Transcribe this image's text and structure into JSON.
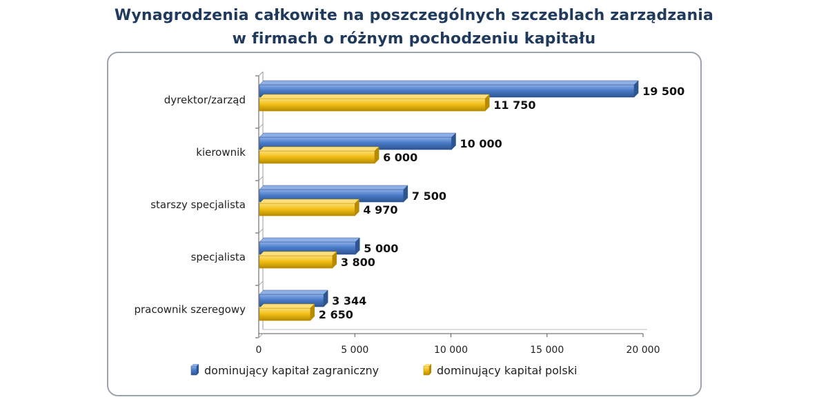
{
  "colors": {
    "series_1": "#4a7bc9",
    "series_1_light": "#8fb0e6",
    "series_1_dark": "#2d558f",
    "series_2": "#f2c018",
    "series_2_light": "#ffe07a",
    "series_2_dark": "#b88a00",
    "axis": "#555555",
    "title": "#1f3a5c"
  },
  "chart_data": {
    "type": "bar",
    "orientation": "horizontal",
    "title_lines": [
      "Wynagrodzenia całkowite na poszczególnych szczeblach zarządzania",
      "w firmach o różnym pochodzeniu kapitału"
    ],
    "categories": [
      "dyrektor/zarząd",
      "kierownik",
      "starszy specjalista",
      "specjalista",
      "pracownik szeregowy"
    ],
    "series": [
      {
        "name": "dominujący kapitał zagraniczny",
        "values": [
          19500,
          10000,
          7500,
          5000,
          3344
        ],
        "labels": [
          "19 500",
          "10 000",
          "7 500",
          "5 000",
          "3 344"
        ]
      },
      {
        "name": "dominujący kapitał polski",
        "values": [
          11750,
          6000,
          4970,
          3800,
          2650
        ],
        "labels": [
          "11 750",
          "6 000",
          "4 970",
          "3 800",
          "2 650"
        ]
      }
    ],
    "xlim": [
      0,
      20000
    ],
    "xticks": [
      0,
      5000,
      10000,
      15000,
      20000
    ],
    "xtick_labels": [
      "0",
      "5 000",
      "10 000",
      "15 000",
      "20 000"
    ],
    "grid": false,
    "legend_position": "bottom"
  }
}
